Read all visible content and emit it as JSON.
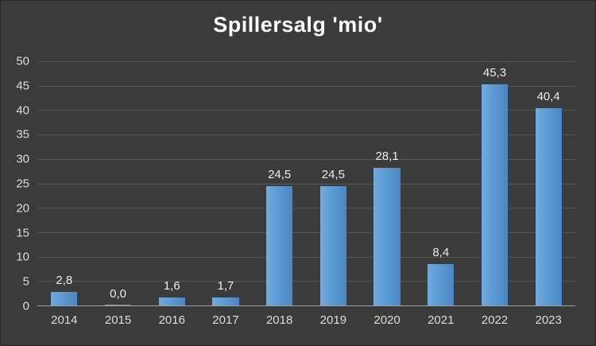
{
  "chart_data": {
    "type": "bar",
    "title": "Spillersalg 'mio'",
    "categories": [
      "2014",
      "2015",
      "2016",
      "2017",
      "2018",
      "2019",
      "2020",
      "2021",
      "2022",
      "2023"
    ],
    "values": [
      2.8,
      0.0,
      1.6,
      1.7,
      24.5,
      24.5,
      28.1,
      8.4,
      45.3,
      40.4
    ],
    "value_labels": [
      "2,8",
      "0,0",
      "1,6",
      "1,7",
      "24,5",
      "24,5",
      "28,1",
      "8,4",
      "45,3",
      "40,4"
    ],
    "xlabel": "",
    "ylabel": "",
    "ylim": [
      0,
      50
    ],
    "ytick_step": 5,
    "ytick_labels": [
      "0",
      "5",
      "10",
      "15",
      "20",
      "25",
      "30",
      "35",
      "40",
      "45",
      "50"
    ],
    "grid": true,
    "legend": false,
    "legend_position": "none",
    "colors": {
      "background": "#3b3b3b",
      "title": "#ffffff",
      "text": "#dcdcdc",
      "gridline": "#555555",
      "axis_line": "#a0a0a0",
      "bar_main": "#5b9bd5",
      "bar_gradient_light": "#71aadf",
      "bar_gradient_dark": "#4a86c4"
    }
  }
}
